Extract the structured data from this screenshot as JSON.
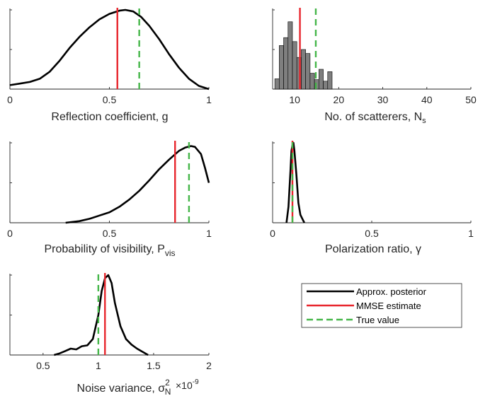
{
  "colors": {
    "posterior": "#000000",
    "mmse": "#e8262d",
    "truth": "#45b649",
    "histogram": "#7f7f7f",
    "axis": "#262626"
  },
  "legend": {
    "entries": [
      {
        "label": "Approx. posterior",
        "style": "solid",
        "color": "#000000"
      },
      {
        "label": "MMSE estimate",
        "style": "solid",
        "color": "#e8262d"
      },
      {
        "label": "True value",
        "style": "dashed",
        "color": "#45b649"
      }
    ]
  },
  "chart_data": [
    {
      "type": "line",
      "xlabel": "Reflection coefficient, g",
      "xlim": [
        0,
        1
      ],
      "xticks": [
        0,
        0.5,
        1
      ],
      "xtick_labels": [
        "0",
        "0.5",
        "1"
      ],
      "ylim": [
        0,
        1
      ],
      "series": [
        {
          "x": [
            0,
            0.05,
            0.1,
            0.15,
            0.2,
            0.25,
            0.3,
            0.35,
            0.4,
            0.45,
            0.5,
            0.55,
            0.58,
            0.62,
            0.66,
            0.7,
            0.75,
            0.8,
            0.85,
            0.9,
            0.95,
            1.0
          ],
          "y": [
            0.05,
            0.07,
            0.09,
            0.13,
            0.22,
            0.36,
            0.52,
            0.66,
            0.78,
            0.88,
            0.95,
            0.99,
            1.0,
            0.98,
            0.91,
            0.8,
            0.63,
            0.44,
            0.27,
            0.13,
            0.04,
            0.0
          ]
        }
      ],
      "mmse": 0.54,
      "true_value": 0.65
    },
    {
      "type": "bar",
      "xlabel": "No. of scatterers, N",
      "xlabel_sub": "s",
      "xlim": [
        5,
        50
      ],
      "xticks": [
        10,
        20,
        30,
        40,
        50
      ],
      "xtick_labels": [
        "10",
        "20",
        "30",
        "40",
        "50"
      ],
      "ylim": [
        0,
        1
      ],
      "bin_width": 1,
      "bins": [
        {
          "x": 6,
          "h": 0.13
        },
        {
          "x": 7,
          "h": 0.55
        },
        {
          "x": 8,
          "h": 0.65
        },
        {
          "x": 9,
          "h": 0.85
        },
        {
          "x": 10,
          "h": 0.6
        },
        {
          "x": 11,
          "h": 0.4
        },
        {
          "x": 12,
          "h": 0.5
        },
        {
          "x": 13,
          "h": 0.45
        },
        {
          "x": 14,
          "h": 0.2
        },
        {
          "x": 15,
          "h": 0.12
        },
        {
          "x": 16,
          "h": 0.25
        },
        {
          "x": 17,
          "h": 0.1
        },
        {
          "x": 18,
          "h": 0.22
        }
      ],
      "mmse": 11.2,
      "true_value": 14.8
    },
    {
      "type": "line",
      "xlabel": "Probability of visibility, P",
      "xlabel_sub": "vis",
      "xlim": [
        0,
        1
      ],
      "xticks": [
        0,
        0.5,
        1
      ],
      "xtick_labels": [
        "0",
        "0.5",
        "1"
      ],
      "ylim": [
        0,
        1
      ],
      "series": [
        {
          "x": [
            0.28,
            0.35,
            0.4,
            0.45,
            0.5,
            0.55,
            0.6,
            0.65,
            0.7,
            0.75,
            0.8,
            0.85,
            0.88,
            0.91,
            0.93,
            0.96,
            0.98,
            1.0
          ],
          "y": [
            0.0,
            0.02,
            0.05,
            0.09,
            0.13,
            0.2,
            0.29,
            0.4,
            0.53,
            0.67,
            0.79,
            0.9,
            0.94,
            0.96,
            0.95,
            0.86,
            0.69,
            0.5
          ]
        }
      ],
      "mmse": 0.83,
      "true_value": 0.9
    },
    {
      "type": "line",
      "xlabel": "Polarization ratio, γ",
      "xlim": [
        0,
        1
      ],
      "xticks": [
        0,
        0.5,
        1
      ],
      "xtick_labels": [
        "0",
        "0.5",
        "1"
      ],
      "ylim": [
        0,
        1
      ],
      "series": [
        {
          "x": [
            0.07,
            0.08,
            0.09,
            0.095,
            0.1,
            0.105,
            0.11,
            0.12,
            0.13,
            0.14,
            0.15,
            0.16
          ],
          "y": [
            0.0,
            0.2,
            0.65,
            0.9,
            0.97,
            1.0,
            0.9,
            0.6,
            0.25,
            0.1,
            0.05,
            0.0
          ]
        }
      ],
      "mmse": 0.1,
      "true_value": 0.1
    },
    {
      "type": "line",
      "xlabel": "Noise variance, σ",
      "xlabel_sup": "2",
      "xlabel_sub": "N",
      "exponent_label": "×10",
      "exponent_power": "-9",
      "xlim": [
        0.2,
        2
      ],
      "xticks": [
        0.5,
        1,
        1.5,
        2
      ],
      "xtick_labels": [
        "0.5",
        "1",
        "1.5",
        "2"
      ],
      "ylim": [
        0,
        1
      ],
      "series": [
        {
          "x": [
            0.6,
            0.65,
            0.7,
            0.75,
            0.8,
            0.85,
            0.9,
            0.95,
            1.0,
            1.03,
            1.06,
            1.09,
            1.12,
            1.15,
            1.2,
            1.25,
            1.3,
            1.35,
            1.4,
            1.45
          ],
          "y": [
            0.0,
            0.02,
            0.05,
            0.08,
            0.07,
            0.11,
            0.12,
            0.2,
            0.5,
            0.8,
            0.96,
            1.0,
            0.9,
            0.65,
            0.36,
            0.2,
            0.13,
            0.08,
            0.04,
            0.0
          ]
        }
      ],
      "mmse": 1.06,
      "true_value": 1.0
    }
  ]
}
